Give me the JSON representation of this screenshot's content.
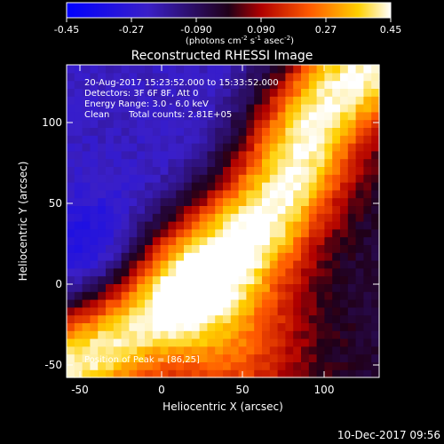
{
  "colorbar": {
    "ticks": [
      "-0.45",
      "-0.27",
      "-0.090",
      "0.090",
      "0.27",
      "0.45"
    ],
    "range": [
      -0.45,
      0.45
    ],
    "units": {
      "pre": "(photons cm",
      "exp1": "-2",
      "mid": " s",
      "exp2": "-1",
      "post": " asec",
      "exp3": "-2",
      "close": ")"
    }
  },
  "footer_date": "10-Dec-2017 09:56",
  "chart_data": {
    "type": "heatmap",
    "title": "Reconstructed RHESSI Image",
    "xlabel": "Heliocentric X (arcsec)",
    "ylabel": "Heliocentric Y (arcsec)",
    "xlim": [
      -57,
      133
    ],
    "ylim": [
      -52,
      135
    ],
    "xticks": [
      "-50",
      "0",
      "50",
      "100"
    ],
    "yticks": [
      "-50",
      "0",
      "50",
      "100"
    ],
    "annotations": {
      "time": "20-Aug-2017 15:23:52.000 to 15:33:52.000",
      "detectors": "Detectors: 3F 6F 8F, Att 0",
      "energy": "Energy Range: 3.0 - 6.0 keV",
      "clean": "Clean",
      "counts": "Total counts: 2.81E+05",
      "peak_label": "Position of Peak = [86,25]"
    },
    "peak": {
      "x": 86,
      "y": 25
    },
    "ridge": [
      [
        -57,
        -45
      ],
      [
        -40,
        -35
      ],
      [
        -20,
        -18
      ],
      [
        0,
        -5
      ],
      [
        20,
        8
      ],
      [
        40,
        22
      ],
      [
        60,
        40
      ],
      [
        75,
        60
      ],
      [
        85,
        80
      ],
      [
        95,
        100
      ],
      [
        110,
        120
      ],
      [
        130,
        135
      ]
    ]
  }
}
